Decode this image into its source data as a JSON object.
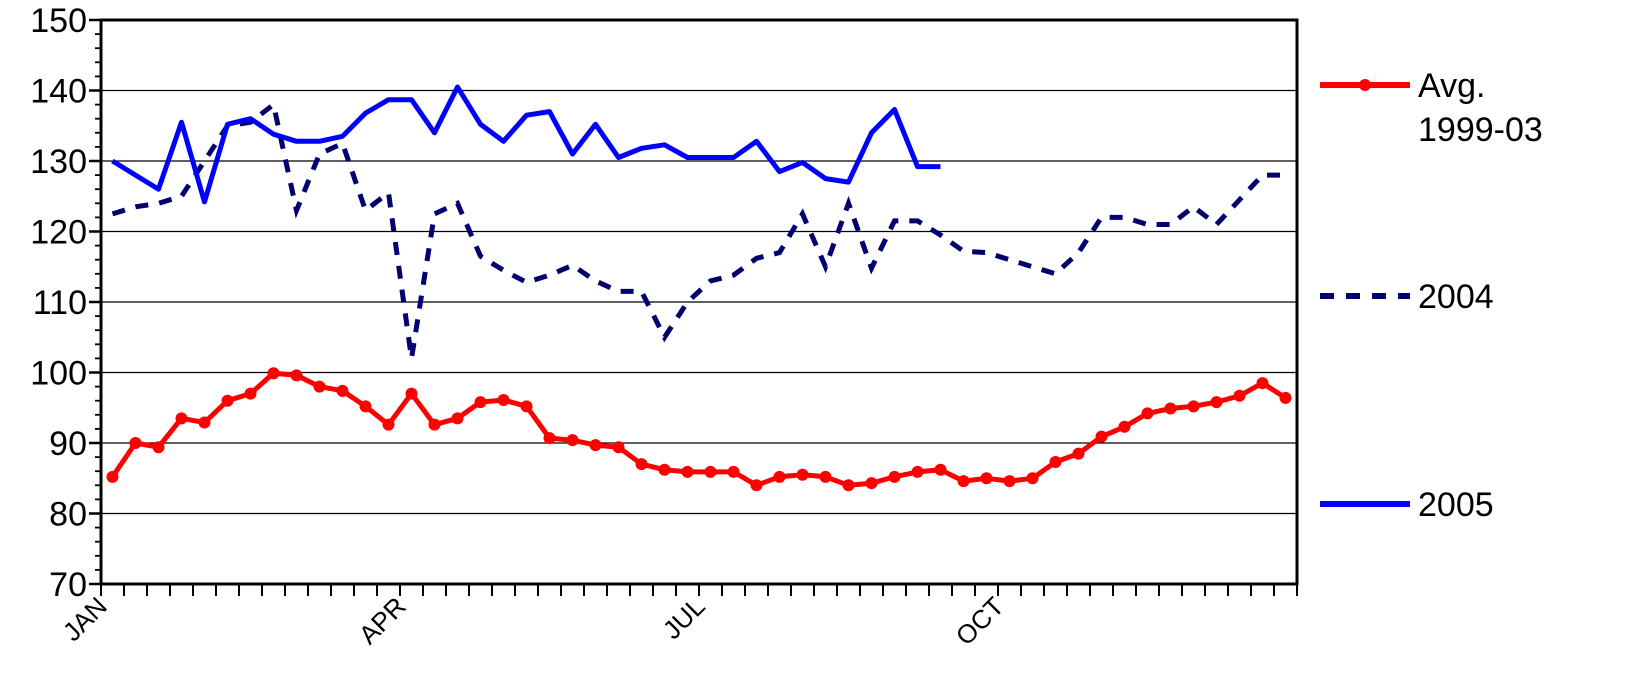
{
  "chart_data": {
    "type": "line",
    "title": "",
    "xlabel": "",
    "ylabel": "",
    "ylim": [
      70,
      150
    ],
    "yticks": [
      70,
      80,
      90,
      100,
      110,
      120,
      130,
      140,
      150
    ],
    "x_period_count": 52,
    "x_category_labels": [
      {
        "label": "JAN",
        "period": 1
      },
      {
        "label": "APR",
        "period": 14
      },
      {
        "label": "JUL",
        "period": 27
      },
      {
        "label": "OCT",
        "period": 40
      }
    ],
    "grid": true,
    "legend_position": "right",
    "series": [
      {
        "name": "Avg. 1999-03",
        "legend_lines": [
          "Avg.",
          "1999-03"
        ],
        "color": "#ff0000",
        "style": "solid-markers",
        "values": [
          85.2,
          90.0,
          89.4,
          93.5,
          92.9,
          96.0,
          97.0,
          99.9,
          99.6,
          98.0,
          97.4,
          95.2,
          92.6,
          97.0,
          92.6,
          93.5,
          95.8,
          96.1,
          95.2,
          90.7,
          90.4,
          89.7,
          89.4,
          87.0,
          86.2,
          85.9,
          85.9,
          85.9,
          84.0,
          85.2,
          85.5,
          85.2,
          84.0,
          84.3,
          85.2,
          85.9,
          86.2,
          84.6,
          85.0,
          84.6,
          85.0,
          87.3,
          88.5,
          90.9,
          92.3,
          94.2,
          94.9,
          95.2,
          95.8,
          96.7,
          98.5,
          96.4
        ]
      },
      {
        "name": "2004",
        "legend_lines": [
          "2004"
        ],
        "color": "#00006e",
        "style": "dashed",
        "values": [
          122.5,
          123.5,
          124.0,
          125.0,
          130.0,
          135.0,
          135.5,
          138.0,
          123.0,
          131.0,
          132.5,
          123.0,
          125.5,
          102.0,
          122.5,
          124.0,
          116.5,
          114.5,
          112.8,
          113.8,
          115.2,
          113.0,
          111.5,
          111.5,
          105.0,
          110.0,
          113.0,
          113.8,
          116.2,
          117.0,
          122.5,
          115.0,
          124.0,
          114.8,
          121.5,
          121.5,
          119.5,
          117.2,
          117.0,
          116.0,
          115.0,
          114.0,
          117.0,
          122.0,
          122.0,
          121.0,
          121.0,
          123.5,
          121.0,
          124.5,
          128.0,
          128.0
        ]
      },
      {
        "name": "2005",
        "legend_lines": [
          "2005"
        ],
        "color": "#0000ff",
        "style": "solid",
        "values": [
          130.0,
          128.0,
          126.0,
          135.5,
          124.2,
          135.2,
          136.0,
          133.8,
          132.8,
          132.8,
          133.5,
          136.8,
          138.7,
          138.7,
          134.0,
          140.5,
          135.2,
          132.8,
          136.5,
          137.0,
          131.0,
          135.2,
          130.5,
          131.8,
          132.3,
          130.5,
          130.5,
          130.5,
          132.8,
          128.5,
          129.8,
          127.5,
          127.0,
          134.0,
          137.3,
          129.2,
          129.2
        ]
      }
    ]
  }
}
